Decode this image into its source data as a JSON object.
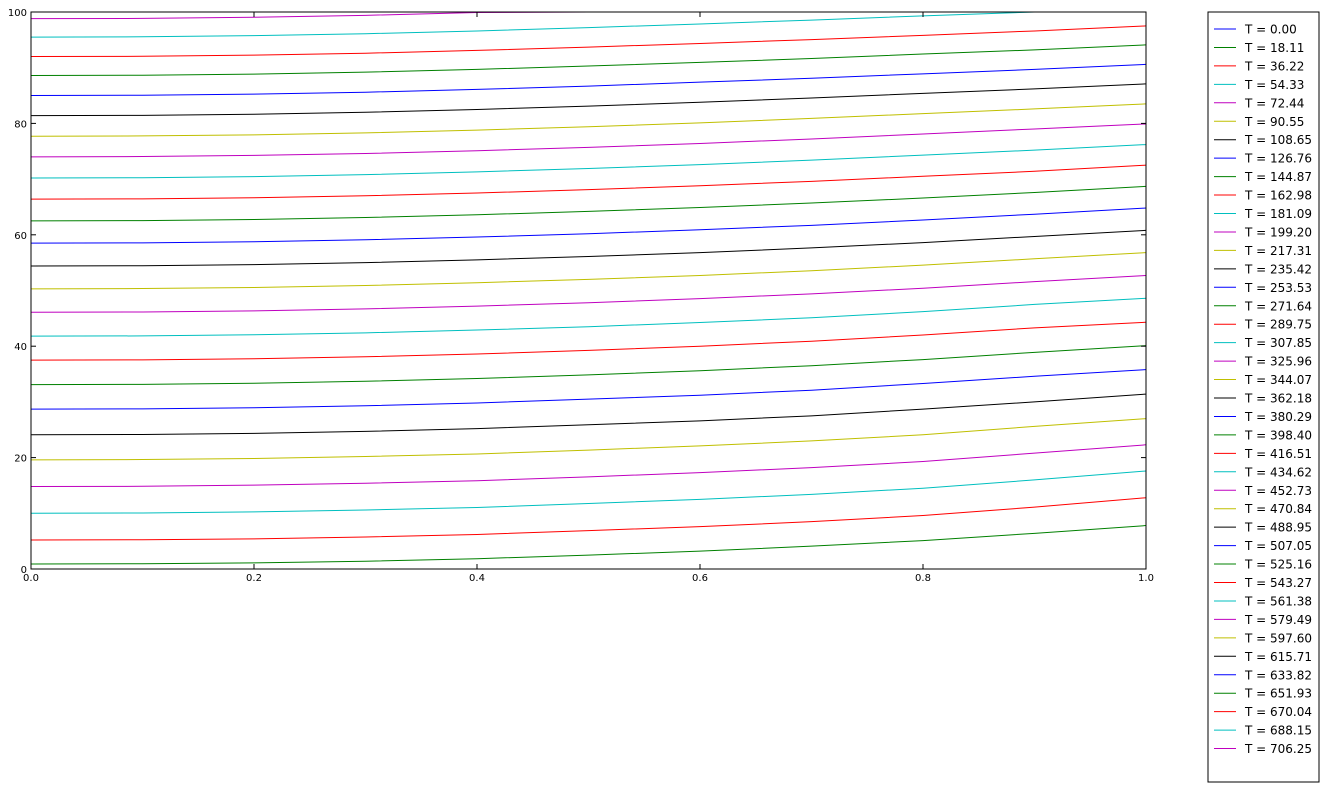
{
  "chart_data": {
    "type": "line",
    "title": "",
    "xlabel": "",
    "ylabel": "",
    "xlim": [
      0.0,
      1.0
    ],
    "ylim": [
      0,
      100
    ],
    "xticks": [
      "0.0",
      "0.2",
      "0.4",
      "0.6",
      "0.8",
      "1.0"
    ],
    "yticks": [
      "0",
      "20",
      "40",
      "60",
      "80",
      "100"
    ],
    "grid": false,
    "legend_position": "outside-right",
    "x": [
      0.0,
      0.1,
      0.2,
      0.3,
      0.4,
      0.5,
      0.6,
      0.7,
      0.8,
      0.9,
      1.0
    ],
    "series": [
      {
        "name": "T = 0.00",
        "color": "#0000ff",
        "values": [
          0,
          0,
          0,
          0,
          0,
          0,
          0,
          0,
          0,
          0,
          0
        ]
      },
      {
        "name": "T = 18.11",
        "color": "#008000",
        "values": [
          0.9,
          0.95,
          1.1,
          1.4,
          1.85,
          2.5,
          3.2,
          4.1,
          5.1,
          6.4,
          7.8
        ]
      },
      {
        "name": "T = 36.22",
        "color": "#ff0000",
        "values": [
          5.2,
          5.25,
          5.4,
          5.75,
          6.2,
          6.9,
          7.6,
          8.5,
          9.6,
          11.1,
          12.8
        ]
      },
      {
        "name": "T = 54.33",
        "color": "#00bfbf",
        "values": [
          10.0,
          10.05,
          10.25,
          10.6,
          11.05,
          11.75,
          12.5,
          13.4,
          14.5,
          16.0,
          17.6
        ]
      },
      {
        "name": "T = 72.44",
        "color": "#bf00bf",
        "values": [
          14.8,
          14.85,
          15.05,
          15.4,
          15.85,
          16.55,
          17.3,
          18.2,
          19.3,
          20.8,
          22.3
        ]
      },
      {
        "name": "T = 90.55",
        "color": "#bfbf00",
        "values": [
          19.6,
          19.65,
          19.85,
          20.2,
          20.65,
          21.35,
          22.1,
          23.0,
          24.1,
          25.6,
          27.0
        ]
      },
      {
        "name": "T = 108.65",
        "color": "#000000",
        "values": [
          24.1,
          24.15,
          24.35,
          24.7,
          25.2,
          25.9,
          26.6,
          27.5,
          28.7,
          30.0,
          31.4
        ]
      },
      {
        "name": "T = 126.76",
        "color": "#0000ff",
        "values": [
          28.7,
          28.75,
          28.95,
          29.3,
          29.8,
          30.5,
          31.2,
          32.1,
          33.3,
          34.6,
          35.8
        ]
      },
      {
        "name": "T = 144.87",
        "color": "#008000",
        "values": [
          33.1,
          33.15,
          33.35,
          33.7,
          34.2,
          34.85,
          35.6,
          36.5,
          37.6,
          38.9,
          40.1
        ]
      },
      {
        "name": "T = 162.98",
        "color": "#ff0000",
        "values": [
          37.5,
          37.55,
          37.75,
          38.1,
          38.6,
          39.25,
          40.0,
          40.9,
          42.0,
          43.3,
          44.3
        ]
      },
      {
        "name": "T = 181.09",
        "color": "#00bfbf",
        "values": [
          41.8,
          41.85,
          42.05,
          42.4,
          42.9,
          43.5,
          44.25,
          45.1,
          46.2,
          47.5,
          48.6
        ]
      },
      {
        "name": "T = 199.20",
        "color": "#bf00bf",
        "values": [
          46.1,
          46.15,
          46.35,
          46.7,
          47.2,
          47.8,
          48.55,
          49.4,
          50.4,
          51.6,
          52.7
        ]
      },
      {
        "name": "T = 217.31",
        "color": "#bfbf00",
        "values": [
          50.3,
          50.35,
          50.55,
          50.9,
          51.4,
          52.0,
          52.7,
          53.55,
          54.55,
          55.7,
          56.8
        ]
      },
      {
        "name": "T = 235.42",
        "color": "#000000",
        "values": [
          54.4,
          54.45,
          54.65,
          55.0,
          55.5,
          56.1,
          56.8,
          57.65,
          58.6,
          59.7,
          60.8
        ]
      },
      {
        "name": "T = 253.53",
        "color": "#0000ff",
        "values": [
          58.5,
          58.55,
          58.75,
          59.1,
          59.6,
          60.2,
          60.9,
          61.7,
          62.65,
          63.7,
          64.8
        ]
      },
      {
        "name": "T = 271.64",
        "color": "#008000",
        "values": [
          62.5,
          62.55,
          62.75,
          63.1,
          63.6,
          64.2,
          64.9,
          65.7,
          66.6,
          67.6,
          68.7
        ]
      },
      {
        "name": "T = 289.75",
        "color": "#ff0000",
        "values": [
          66.4,
          66.45,
          66.65,
          67.0,
          67.5,
          68.1,
          68.8,
          69.6,
          70.5,
          71.4,
          72.5
        ]
      },
      {
        "name": "T = 307.85",
        "color": "#00bfbf",
        "values": [
          70.2,
          70.25,
          70.45,
          70.8,
          71.3,
          71.9,
          72.6,
          73.4,
          74.3,
          75.2,
          76.2
        ]
      },
      {
        "name": "T = 325.96",
        "color": "#bf00bf",
        "values": [
          74.0,
          74.05,
          74.25,
          74.6,
          75.1,
          75.7,
          76.4,
          77.2,
          78.1,
          79.0,
          79.9
        ]
      },
      {
        "name": "T = 344.07",
        "color": "#bfbf00",
        "values": [
          77.7,
          77.75,
          77.95,
          78.3,
          78.8,
          79.4,
          80.1,
          80.9,
          81.75,
          82.6,
          83.5
        ]
      },
      {
        "name": "T = 362.18",
        "color": "#000000",
        "values": [
          81.4,
          81.45,
          81.65,
          82.0,
          82.5,
          83.1,
          83.8,
          84.55,
          85.4,
          86.2,
          87.1
        ]
      },
      {
        "name": "T = 380.29",
        "color": "#0000ff",
        "values": [
          85.0,
          85.05,
          85.25,
          85.6,
          86.1,
          86.7,
          87.4,
          88.1,
          88.9,
          89.7,
          90.6
        ]
      },
      {
        "name": "T = 398.40",
        "color": "#008000",
        "values": [
          88.6,
          88.65,
          88.85,
          89.2,
          89.7,
          90.3,
          90.95,
          91.65,
          92.45,
          93.2,
          94.1
        ]
      },
      {
        "name": "T = 416.51",
        "color": "#ff0000",
        "values": [
          92.0,
          92.05,
          92.25,
          92.6,
          93.1,
          93.7,
          94.35,
          95.05,
          95.8,
          96.6,
          97.5
        ]
      },
      {
        "name": "T = 434.62",
        "color": "#00bfbf",
        "values": [
          95.5,
          95.55,
          95.75,
          96.1,
          96.6,
          97.2,
          97.85,
          98.55,
          99.3,
          100.0,
          100.0
        ]
      },
      {
        "name": "T = 452.73",
        "color": "#bf00bf",
        "values": [
          98.8,
          98.85,
          99.05,
          99.4,
          99.9,
          100.0,
          100.0,
          100.0,
          100.0,
          100.0,
          100.0
        ]
      },
      {
        "name": "T = 470.84",
        "color": "#bfbf00",
        "values": [
          100,
          100,
          100,
          100,
          100,
          100,
          100,
          100,
          100,
          100,
          100
        ]
      },
      {
        "name": "T = 488.95",
        "color": "#000000",
        "values": [
          100,
          100,
          100,
          100,
          100,
          100,
          100,
          100,
          100,
          100,
          100
        ]
      },
      {
        "name": "T = 507.05",
        "color": "#0000ff",
        "values": [
          100,
          100,
          100,
          100,
          100,
          100,
          100,
          100,
          100,
          100,
          100
        ]
      },
      {
        "name": "T = 525.16",
        "color": "#008000",
        "values": [
          100,
          100,
          100,
          100,
          100,
          100,
          100,
          100,
          100,
          100,
          100
        ]
      },
      {
        "name": "T = 543.27",
        "color": "#ff0000",
        "values": [
          100,
          100,
          100,
          100,
          100,
          100,
          100,
          100,
          100,
          100,
          100
        ]
      },
      {
        "name": "T = 561.38",
        "color": "#00bfbf",
        "values": [
          100,
          100,
          100,
          100,
          100,
          100,
          100,
          100,
          100,
          100,
          100
        ]
      },
      {
        "name": "T = 579.49",
        "color": "#bf00bf",
        "values": [
          100,
          100,
          100,
          100,
          100,
          100,
          100,
          100,
          100,
          100,
          100
        ]
      },
      {
        "name": "T = 597.60",
        "color": "#bfbf00",
        "values": [
          100,
          100,
          100,
          100,
          100,
          100,
          100,
          100,
          100,
          100,
          100
        ]
      },
      {
        "name": "T = 615.71",
        "color": "#000000",
        "values": [
          100,
          100,
          100,
          100,
          100,
          100,
          100,
          100,
          100,
          100,
          100
        ]
      },
      {
        "name": "T = 633.82",
        "color": "#0000ff",
        "values": [
          100,
          100,
          100,
          100,
          100,
          100,
          100,
          100,
          100,
          100,
          100
        ]
      },
      {
        "name": "T = 651.93",
        "color": "#008000",
        "values": [
          100,
          100,
          100,
          100,
          100,
          100,
          100,
          100,
          100,
          100,
          100
        ]
      },
      {
        "name": "T = 670.04",
        "color": "#ff0000",
        "values": [
          100,
          100,
          100,
          100,
          100,
          100,
          100,
          100,
          100,
          100,
          100
        ]
      },
      {
        "name": "T = 688.15",
        "color": "#00bfbf",
        "values": [
          100,
          100,
          100,
          100,
          100,
          100,
          100,
          100,
          100,
          100,
          100
        ]
      },
      {
        "name": "T = 706.25",
        "color": "#bf00bf",
        "values": [
          100,
          100,
          100,
          100,
          100,
          100,
          100,
          100,
          100,
          100,
          100
        ]
      }
    ]
  }
}
